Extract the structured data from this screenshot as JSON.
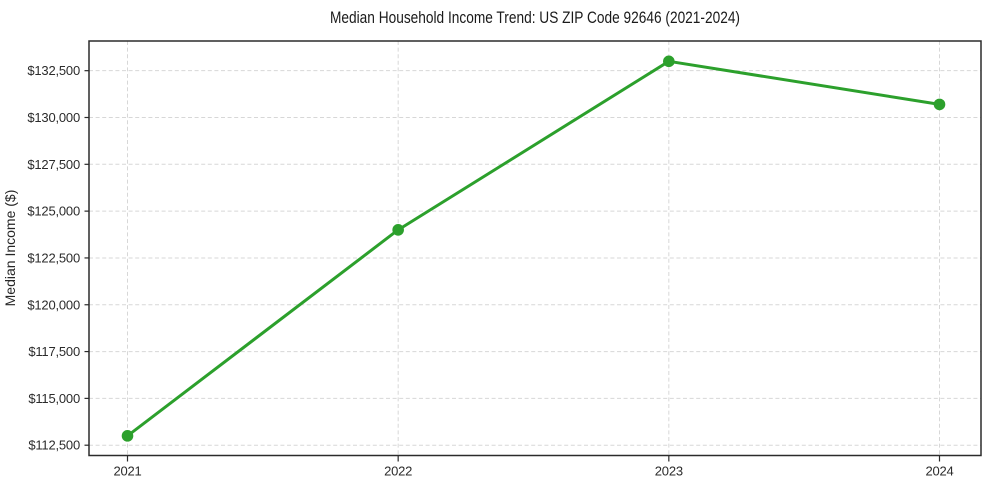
{
  "chart_data": {
    "type": "line",
    "title": "Median Household Income Trend: US ZIP Code 92646 (2021-2024)",
    "xlabel": "",
    "ylabel": "Median Income ($)",
    "categories": [
      "2021",
      "2022",
      "2023",
      "2024"
    ],
    "series": [
      {
        "name": "Median Household Income",
        "values": [
          113000,
          124000,
          133000,
          130700
        ],
        "color": "#2ca02c",
        "marker": "circle"
      }
    ],
    "yticks": [
      {
        "value": 112500,
        "label": "$112,500"
      },
      {
        "value": 115000,
        "label": "$115,000"
      },
      {
        "value": 117500,
        "label": "$117,500"
      },
      {
        "value": 120000,
        "label": "$120,000"
      },
      {
        "value": 122500,
        "label": "$122,500"
      },
      {
        "value": 125000,
        "label": "$125,000"
      },
      {
        "value": 127500,
        "label": "$127,500"
      },
      {
        "value": 130000,
        "label": "$130,000"
      },
      {
        "value": 132500,
        "label": "$132,500"
      }
    ],
    "ylim": [
      111950,
      134085
    ],
    "grid": "dashed",
    "grid_color": "#d7d7d7",
    "axis_color": "#2b2b2b",
    "background_color": "#ffffff",
    "legend_position": "none"
  }
}
